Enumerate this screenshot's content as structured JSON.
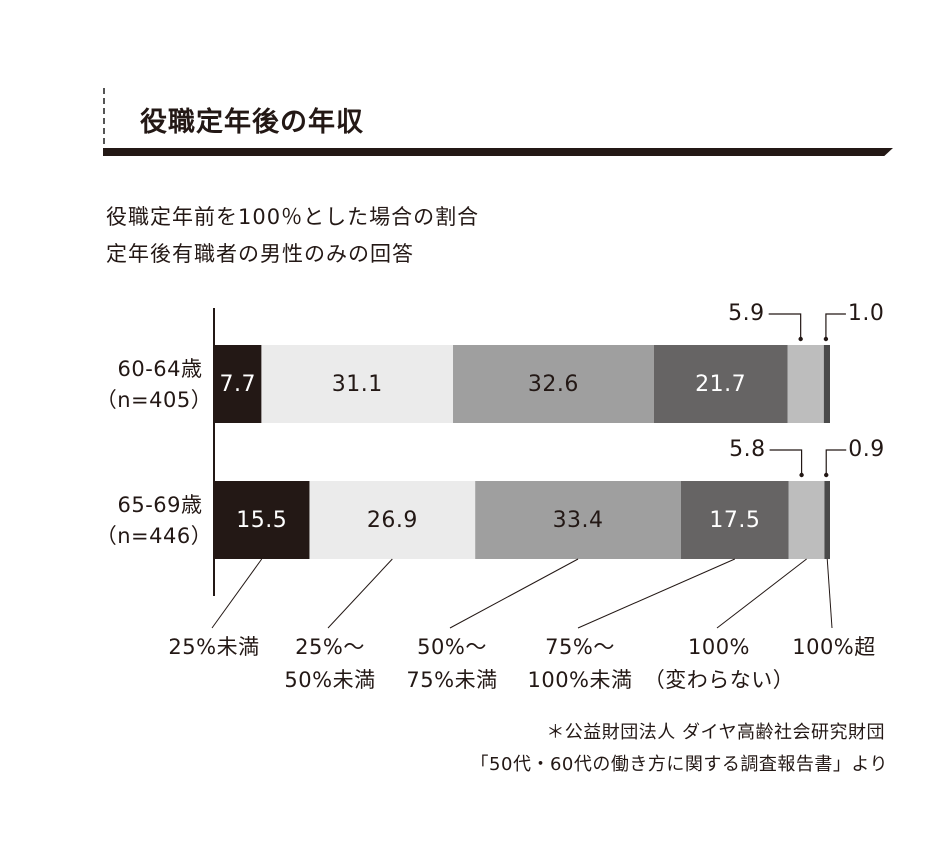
{
  "header": {
    "title": "役職定年後の年収",
    "subtitle_line1": "役職定年前を100％とした場合の割合",
    "subtitle_line2": "定年後有職者の男性のみの回答"
  },
  "source": {
    "line1": "＊公益財団法人 ダイヤ高齢社会研究財団",
    "line2": "「50代・60代の働き方に関する調査報告書」より"
  },
  "chart_data": {
    "type": "bar",
    "orientation": "horizontal",
    "stacked": true,
    "unit": "%",
    "xlim": [
      0,
      100
    ],
    "categories": [
      {
        "label": "60-64歳",
        "sub": "（n=405）"
      },
      {
        "label": "65-69歳",
        "sub": "（n=446）"
      }
    ],
    "series": [
      {
        "name": "25%未満",
        "label_lines": [
          "25%未満"
        ],
        "color": "#231815",
        "text_color": "#ffffff",
        "values": [
          7.7,
          15.5
        ],
        "labels": [
          "7.7",
          "15.5"
        ]
      },
      {
        "name": "25%～50%未満",
        "label_lines": [
          "25%～",
          "50%未満"
        ],
        "color": "#ebebeb",
        "text_color": "#231815",
        "values": [
          31.1,
          26.9
        ],
        "labels": [
          "31.1",
          "26.9"
        ]
      },
      {
        "name": "50%～75%未満",
        "label_lines": [
          "50%～",
          "75%未満"
        ],
        "color": "#9f9f9f",
        "text_color": "#231815",
        "values": [
          32.6,
          33.4
        ],
        "labels": [
          "32.6",
          "33.4"
        ]
      },
      {
        "name": "75%～100%未満",
        "label_lines": [
          "75%～",
          "100%未満"
        ],
        "color": "#666464",
        "text_color": "#ffffff",
        "values": [
          21.7,
          17.5
        ],
        "labels": [
          "21.7",
          "17.5"
        ]
      },
      {
        "name": "100%（変わらない）",
        "label_lines": [
          "100%",
          "（変わらない）"
        ],
        "color": "#bdbdbd",
        "text_color": "#231815",
        "values": [
          5.9,
          5.8
        ],
        "labels": [
          "5.9",
          "5.8"
        ]
      },
      {
        "name": "100%超",
        "label_lines": [
          "100%超"
        ],
        "color": "#4a4a4a",
        "text_color": "#231815",
        "values": [
          1.0,
          0.9
        ],
        "labels": [
          "1.0",
          "0.9"
        ]
      }
    ],
    "grid": false,
    "legend": "bottom"
  }
}
